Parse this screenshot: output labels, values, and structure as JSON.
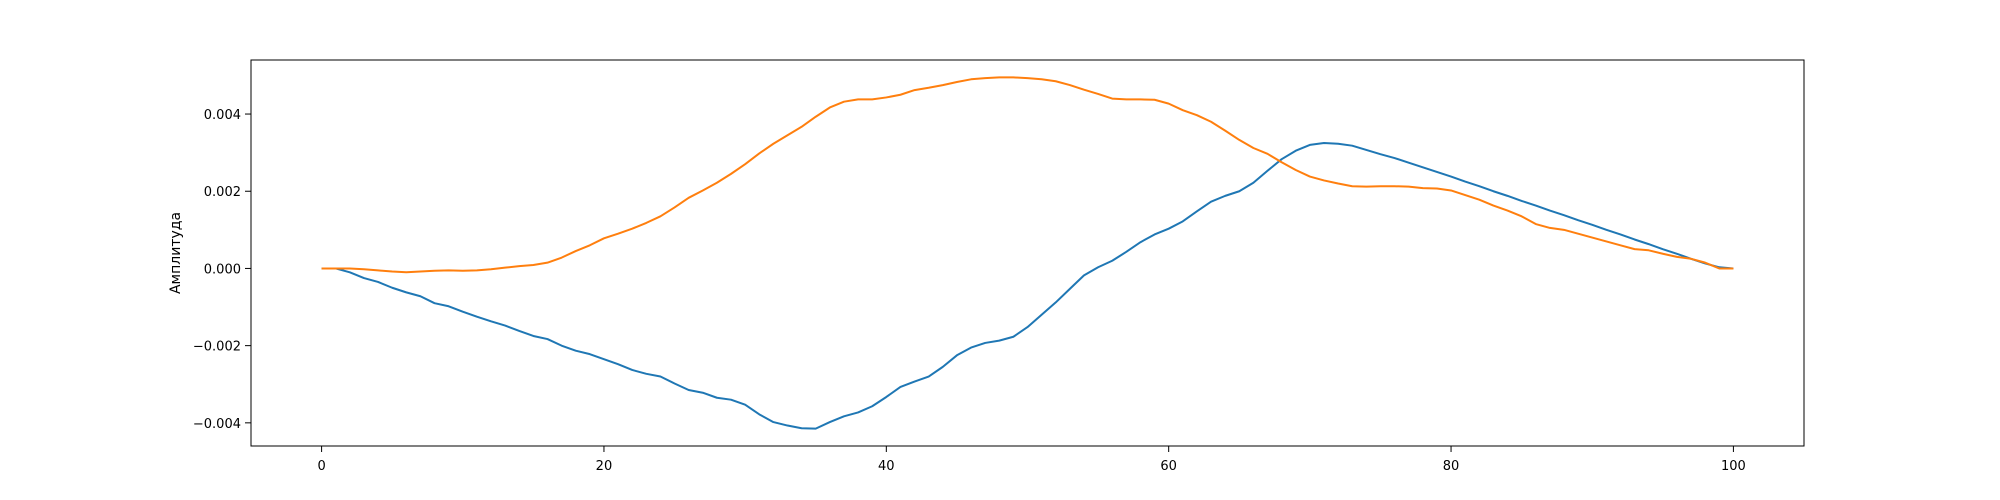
{
  "chart_data": {
    "type": "line",
    "title": "",
    "xlabel": "",
    "ylabel": "Амплитуда",
    "xlim": [
      -5,
      105
    ],
    "ylim": [
      -0.0046,
      0.0054
    ],
    "xticks": [
      0,
      20,
      40,
      60,
      80,
      100
    ],
    "xtick_labels": [
      "0",
      "20",
      "40",
      "60",
      "80",
      "100"
    ],
    "yticks": [
      -0.004,
      -0.002,
      0.0,
      0.002,
      0.004
    ],
    "ytick_labels": [
      "−0.004",
      "−0.002",
      "0.000",
      "0.002",
      "0.004"
    ],
    "grid": false,
    "series": [
      {
        "color": "#1f77b4",
        "x": [
          0,
          1,
          2,
          3,
          4,
          5,
          6,
          7,
          8,
          9,
          10,
          11,
          12,
          13,
          14,
          15,
          16,
          17,
          18,
          19,
          20,
          21,
          22,
          23,
          24,
          25,
          26,
          27,
          28,
          29,
          30,
          31,
          32,
          33,
          34,
          35,
          36,
          37,
          38,
          39,
          40,
          41,
          42,
          43,
          44,
          45,
          46,
          47,
          48,
          49,
          50,
          51,
          52,
          53,
          54,
          55,
          56,
          57,
          58,
          59,
          60,
          61,
          62,
          63,
          64,
          65,
          66,
          67,
          68,
          69,
          70,
          71,
          72,
          73,
          74,
          75,
          76,
          77,
          78,
          79,
          80,
          81,
          82,
          83,
          84,
          85,
          86,
          87,
          88,
          89,
          90,
          91,
          92,
          93,
          94,
          95,
          96,
          97,
          98,
          99,
          100
        ],
        "y": [
          0,
          0,
          -0.0001,
          -0.00025,
          -0.00035,
          -0.0005,
          -0.00062,
          -0.00072,
          -0.0009,
          -0.00098,
          -0.00112,
          -0.00125,
          -0.00137,
          -0.00148,
          -0.00162,
          -0.00175,
          -0.00183,
          -0.002,
          -0.00213,
          -0.00222,
          -0.00235,
          -0.00248,
          -0.00263,
          -0.00273,
          -0.0028,
          -0.00298,
          -0.00315,
          -0.00322,
          -0.00335,
          -0.0034,
          -0.00353,
          -0.00378,
          -0.00398,
          -0.00407,
          -0.00414,
          -0.00415,
          -0.00398,
          -0.00383,
          -0.00373,
          -0.00357,
          -0.00333,
          -0.00307,
          -0.00293,
          -0.0028,
          -0.00255,
          -0.00225,
          -0.00205,
          -0.00193,
          -0.00187,
          -0.00177,
          -0.00152,
          -0.0012,
          -0.00088,
          -0.00053,
          -0.00018,
          3e-05,
          0.0002,
          0.00043,
          0.00068,
          0.00088,
          0.00103,
          0.00122,
          0.00148,
          0.00173,
          0.00188,
          0.002,
          0.00222,
          0.00253,
          0.00283,
          0.00305,
          0.0032,
          0.00325,
          0.00323,
          0.00318,
          0.00307,
          0.00296,
          0.00286,
          0.00274,
          0.00262,
          0.0025,
          0.00238,
          0.00225,
          0.00213,
          0.002,
          0.00188,
          0.00175,
          0.00163,
          0.0015,
          0.00138,
          0.00125,
          0.00113,
          0.001,
          0.00088,
          0.00075,
          0.00063,
          0.0005,
          0.00038,
          0.00025,
          0.00013,
          3e-05,
          0
        ]
      },
      {
        "color": "#ff7f0e",
        "x": [
          0,
          1,
          2,
          3,
          4,
          5,
          6,
          7,
          8,
          9,
          10,
          11,
          12,
          13,
          14,
          15,
          16,
          17,
          18,
          19,
          20,
          21,
          22,
          23,
          24,
          25,
          26,
          27,
          28,
          29,
          30,
          31,
          32,
          33,
          34,
          35,
          36,
          37,
          38,
          39,
          40,
          41,
          42,
          43,
          44,
          45,
          46,
          47,
          48,
          49,
          50,
          51,
          52,
          53,
          54,
          55,
          56,
          57,
          58,
          59,
          60,
          61,
          62,
          63,
          64,
          65,
          66,
          67,
          68,
          69,
          70,
          71,
          72,
          73,
          74,
          75,
          76,
          77,
          78,
          79,
          80,
          81,
          82,
          83,
          84,
          85,
          86,
          87,
          88,
          89,
          90,
          91,
          92,
          93,
          94,
          95,
          96,
          97,
          98,
          99,
          100
        ],
        "y": [
          0,
          0,
          0,
          -2e-05,
          -5e-05,
          -8e-05,
          -0.0001,
          -8e-05,
          -6e-05,
          -5e-05,
          -6e-05,
          -5e-05,
          -2e-05,
          2e-05,
          6e-05,
          9e-05,
          0.00015,
          0.00028,
          0.00045,
          0.0006,
          0.00078,
          0.0009,
          0.00103,
          0.00118,
          0.00135,
          0.00158,
          0.00183,
          0.00202,
          0.00222,
          0.00245,
          0.0027,
          0.00298,
          0.00323,
          0.00345,
          0.00367,
          0.00393,
          0.00417,
          0.00432,
          0.00438,
          0.00438,
          0.00443,
          0.0045,
          0.00462,
          0.00468,
          0.00475,
          0.00483,
          0.0049,
          0.00493,
          0.00495,
          0.00495,
          0.00493,
          0.0049,
          0.00485,
          0.00475,
          0.00463,
          0.00452,
          0.0044,
          0.00438,
          0.00438,
          0.00437,
          0.00427,
          0.0041,
          0.00397,
          0.0038,
          0.00357,
          0.00333,
          0.00312,
          0.00297,
          0.00275,
          0.00255,
          0.00238,
          0.00228,
          0.0022,
          0.00213,
          0.00212,
          0.00213,
          0.00213,
          0.00212,
          0.00208,
          0.00207,
          0.00202,
          0.0019,
          0.00178,
          0.00163,
          0.0015,
          0.00135,
          0.00115,
          0.00105,
          0.001,
          0.0009,
          0.0008,
          0.0007,
          0.0006,
          0.0005,
          0.00047,
          0.00038,
          0.0003,
          0.00025,
          0.00015,
          0,
          0
        ]
      }
    ]
  }
}
